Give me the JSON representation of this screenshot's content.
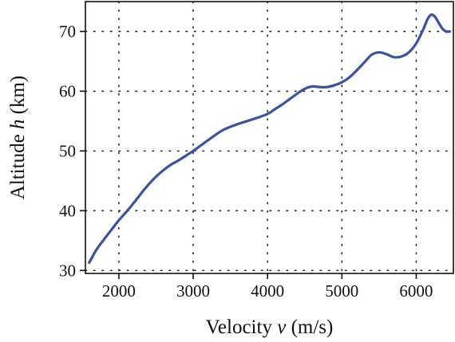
{
  "chart_data": {
    "type": "line",
    "title": "",
    "xlabel": {
      "pre": "Velocity ",
      "symbol": "v",
      "post": " (m/s)"
    },
    "ylabel": {
      "pre": "Altitude ",
      "symbol": "h",
      "post": " (km)"
    },
    "xlim": [
      1550,
      6500
    ],
    "ylim": [
      29.5,
      75
    ],
    "xticks": [
      2000,
      3000,
      4000,
      5000,
      6000
    ],
    "yticks": [
      30,
      40,
      50,
      60,
      70
    ],
    "grid": true,
    "series": [
      {
        "color": "#3a52a0",
        "x": [
          1600,
          1700,
          1800,
          1900,
          2000,
          2100,
          2200,
          2300,
          2400,
          2500,
          2600,
          2700,
          2800,
          2900,
          3000,
          3200,
          3400,
          3600,
          3800,
          4000,
          4100,
          4200,
          4300,
          4400,
          4500,
          4600,
          4700,
          4800,
          4900,
          5000,
          5100,
          5200,
          5300,
          5400,
          5500,
          5600,
          5700,
          5800,
          5900,
          6000,
          6100,
          6150,
          6200,
          6250,
          6300,
          6350,
          6400,
          6450
        ],
        "y": [
          31.3,
          33.5,
          35.2,
          36.8,
          38.4,
          39.8,
          41.3,
          42.9,
          44.4,
          45.7,
          46.8,
          47.7,
          48.4,
          49.2,
          50.0,
          51.8,
          53.5,
          54.5,
          55.3,
          56.2,
          57.0,
          57.8,
          58.7,
          59.6,
          60.4,
          60.8,
          60.7,
          60.7,
          61.0,
          61.5,
          62.3,
          63.5,
          64.8,
          66.1,
          66.5,
          66.2,
          65.7,
          65.8,
          66.5,
          68.0,
          70.5,
          72.0,
          72.8,
          72.5,
          71.5,
          70.5,
          70.0,
          70.0
        ]
      }
    ]
  }
}
